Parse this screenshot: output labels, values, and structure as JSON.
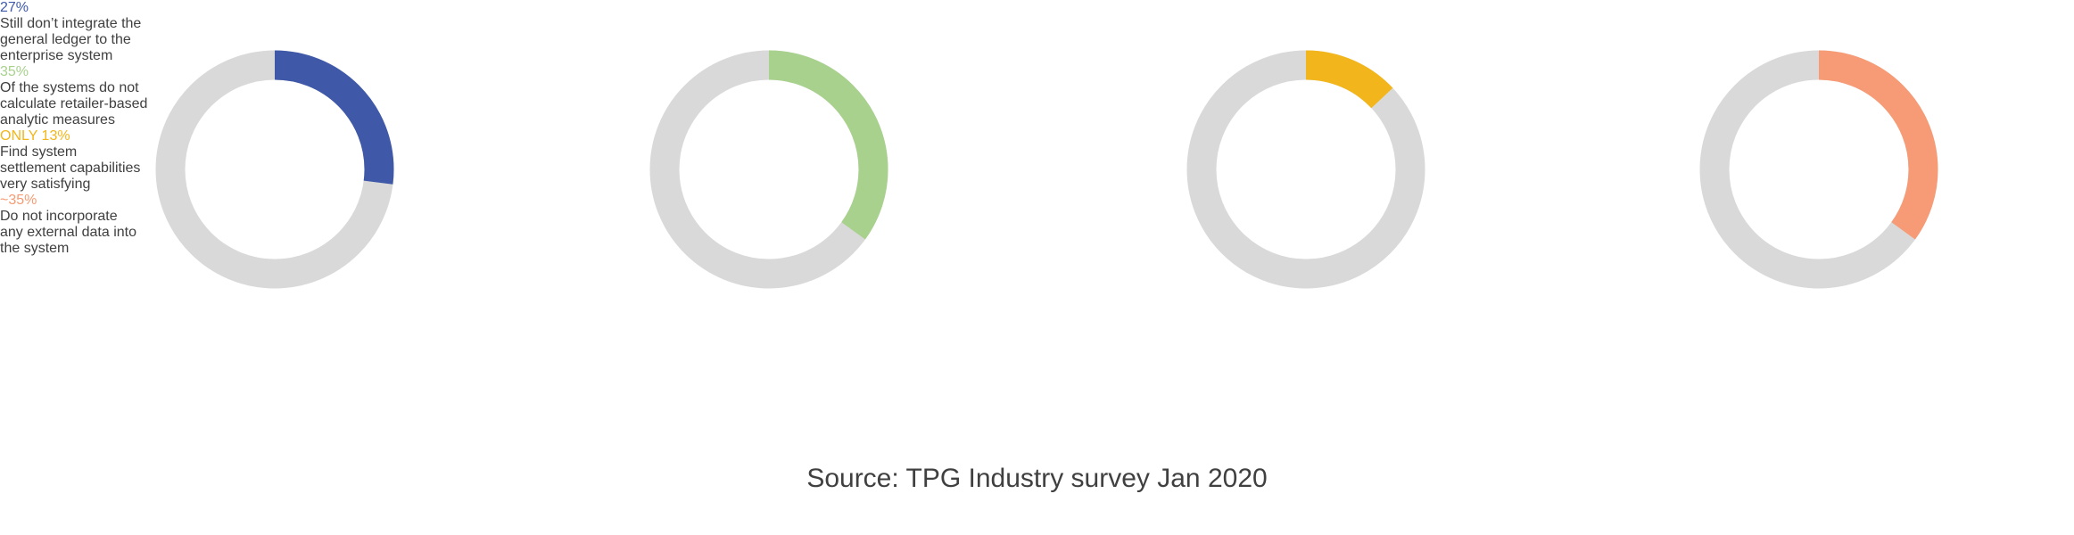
{
  "chart_data": [
    {
      "type": "donut",
      "values": [
        27
      ],
      "value_labels": [
        "27%"
      ],
      "color": "#3f59a8",
      "caption": [
        "Still don’t integrate the",
        "general ledger to the",
        "enterprise system"
      ]
    },
    {
      "type": "donut",
      "values": [
        35
      ],
      "value_labels": [
        "35%"
      ],
      "color": "#a8d18d",
      "caption": [
        "Of the systems do not",
        "calculate retailer-based",
        "analytic measures"
      ]
    },
    {
      "type": "donut",
      "values": [
        13
      ],
      "value_labels": [
        "ONLY 13%"
      ],
      "color": "#f2b61c",
      "caption": [
        "Find system",
        "settlement capabilities",
        "very satisfying"
      ]
    },
    {
      "type": "donut",
      "values": [
        35
      ],
      "value_labels": [
        "~35%"
      ],
      "color": "#f69b75",
      "caption": [
        "Do not incorporate",
        "any external data into",
        "the system"
      ]
    }
  ],
  "source": "Source: TPG Industry survey Jan 2020"
}
